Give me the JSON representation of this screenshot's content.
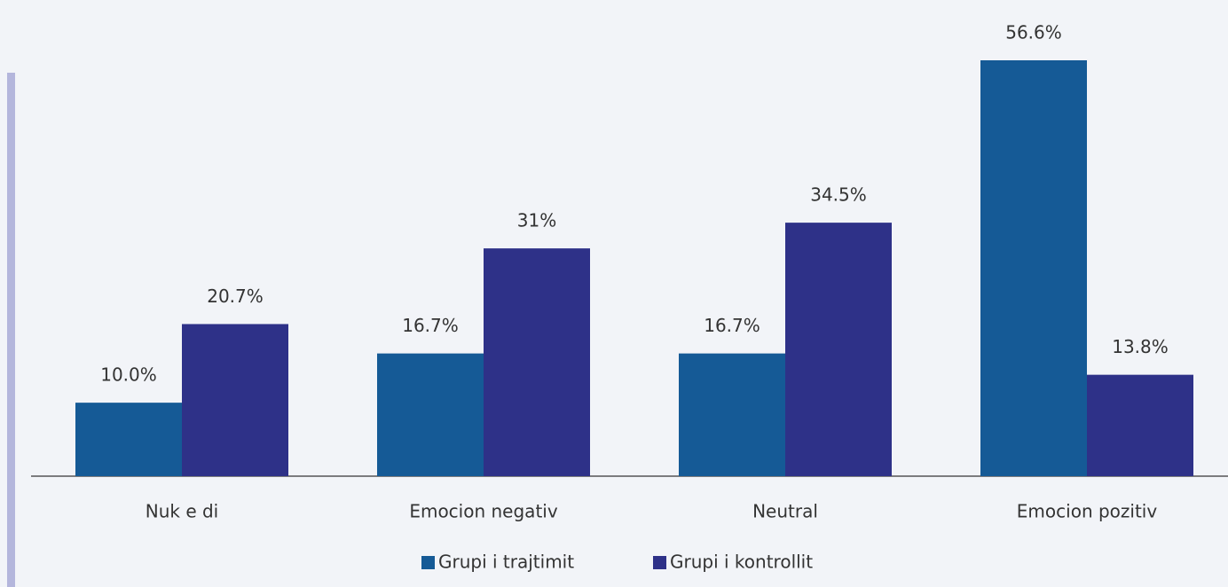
{
  "chart_data": {
    "type": "bar",
    "categories": [
      "Nuk e di",
      "Emocion negativ",
      "Neutral",
      "Emocion pozitiv"
    ],
    "series": [
      {
        "name": "Grupi i trajtimit",
        "color": "#155a96",
        "values": [
          10.0,
          16.7,
          16.7,
          56.6
        ],
        "value_labels": [
          "10.0%",
          "16.7%",
          "16.7%",
          "56.6%"
        ]
      },
      {
        "name": "Grupi i kontrollit",
        "color": "#2e3188",
        "values": [
          20.7,
          31,
          34.5,
          13.8
        ],
        "value_labels": [
          "20.7%",
          "31%",
          "34.5%",
          "13.8%"
        ]
      }
    ]
  }
}
